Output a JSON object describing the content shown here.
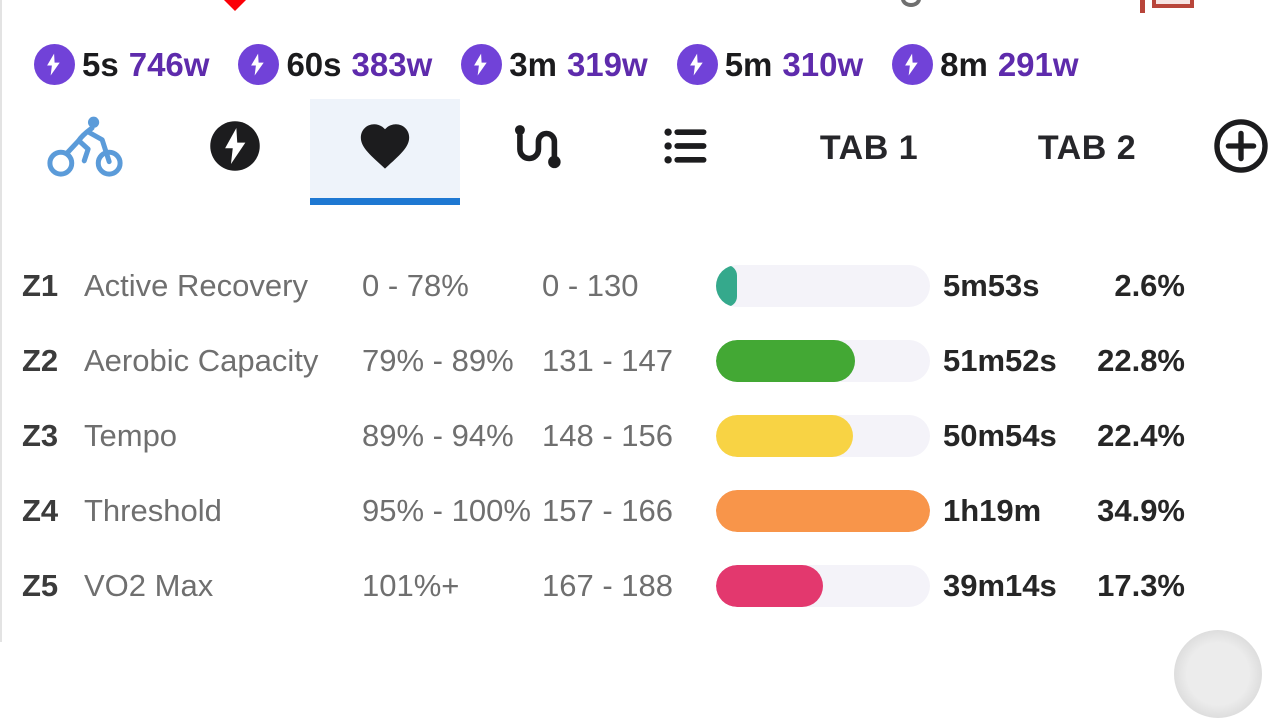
{
  "colors": {
    "accent_blue": "#1e78d2",
    "active_tab_bg": "#eef3fa",
    "stat_badge_purple": "#7142d8",
    "stat_value_purple": "#5e2bac",
    "bike_icon_blue": "#5b9bd9",
    "dark_icon": "#1c1c1e",
    "bar_track": "#f4f3f9"
  },
  "power_stats": {
    "items": [
      {
        "icon": "bolt-icon",
        "label": "5s",
        "value": "746w"
      },
      {
        "icon": "bolt-icon",
        "label": "60s",
        "value": "383w"
      },
      {
        "icon": "bolt-icon",
        "label": "3m",
        "value": "319w"
      },
      {
        "icon": "bolt-icon",
        "label": "5m",
        "value": "310w"
      },
      {
        "icon": "bolt-icon",
        "label": "8m",
        "value": "291w"
      }
    ]
  },
  "tabs": {
    "icon_tabs": [
      {
        "icon": "bike-icon",
        "active": false
      },
      {
        "icon": "bolt-circle-icon",
        "active": false
      },
      {
        "icon": "heart-icon",
        "active": true
      },
      {
        "icon": "route-icon",
        "active": false
      },
      {
        "icon": "list-icon",
        "active": false
      }
    ],
    "tab1_label": "TAB 1",
    "tab2_label": "TAB 2",
    "add_tab_icon": "plus-circle-icon"
  },
  "zones": {
    "rows": [
      {
        "code": "Z1",
        "name": "Active Recovery",
        "percent_range": "0 - 78%",
        "hr_range": "0 - 130",
        "time": "5m53s",
        "share": "2.6%",
        "share_value": 2.6,
        "fill_pct": 10,
        "color": "#35a98c"
      },
      {
        "code": "Z2",
        "name": "Aerobic Capacity",
        "percent_range": "79% - 89%",
        "hr_range": "131 - 147",
        "time": "51m52s",
        "share": "22.8%",
        "share_value": 22.8,
        "fill_pct": 65,
        "color": "#43a834"
      },
      {
        "code": "Z3",
        "name": "Tempo",
        "percent_range": "89% - 94%",
        "hr_range": "148 - 156",
        "time": "50m54s",
        "share": "22.4%",
        "share_value": 22.4,
        "fill_pct": 64,
        "color": "#f8d344"
      },
      {
        "code": "Z4",
        "name": "Threshold",
        "percent_range": "95% - 100%",
        "hr_range": "157 - 166",
        "time": "1h19m",
        "share": "34.9%",
        "share_value": 34.9,
        "fill_pct": 100,
        "color": "#f8954a"
      },
      {
        "code": "Z5",
        "name": "VO2 Max",
        "percent_range": "101%+",
        "hr_range": "167 - 188",
        "time": "39m14s",
        "share": "17.3%",
        "share_value": 17.3,
        "fill_pct": 50,
        "color": "#e3386e"
      }
    ]
  }
}
